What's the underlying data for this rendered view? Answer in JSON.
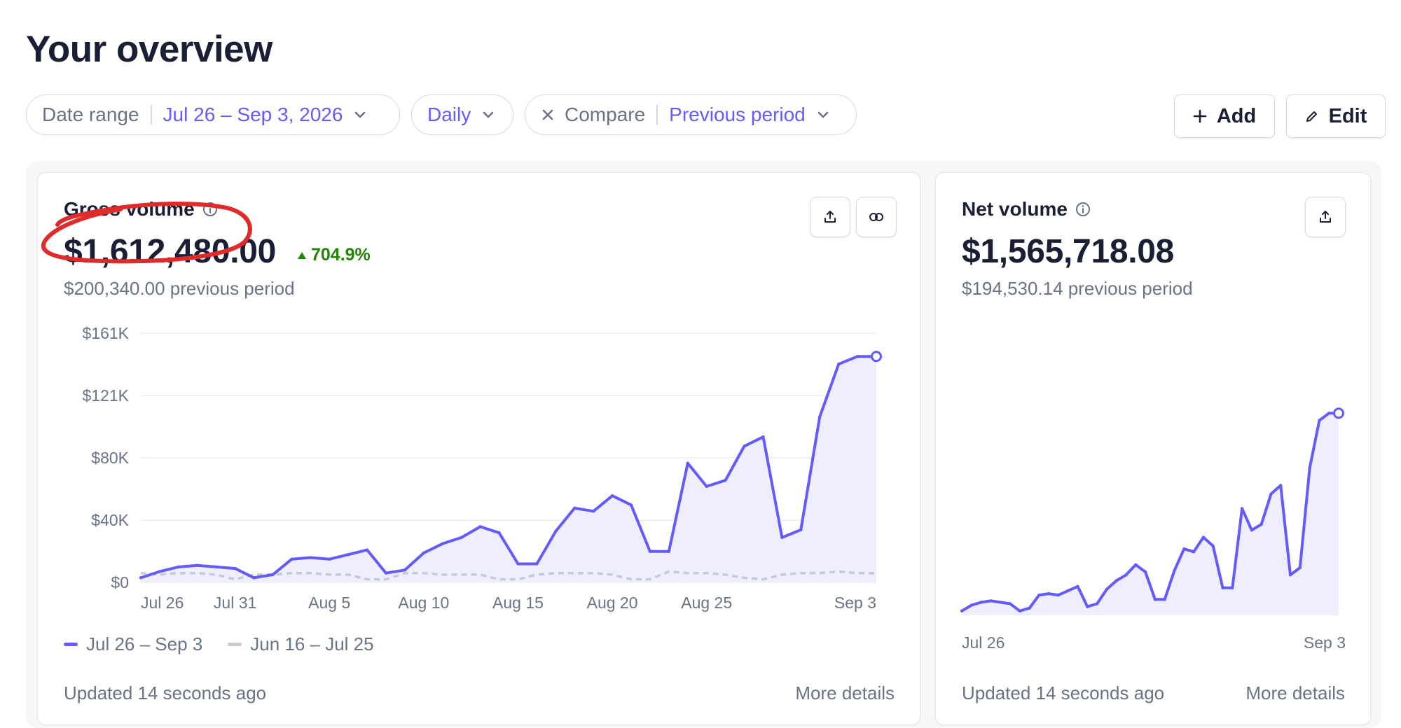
{
  "page": {
    "title": "Your overview"
  },
  "filters": {
    "date_range": {
      "label": "Date range",
      "value": "Jul 26 – Sep 3, 2026"
    },
    "interval": {
      "value": "Daily"
    },
    "compare": {
      "label": "Compare",
      "value": "Previous period"
    }
  },
  "actions": {
    "add_label": "Add",
    "edit_label": "Edit"
  },
  "colors": {
    "accent": "#635bff",
    "positive": "#228403",
    "muted": "#697386",
    "annotation": "#e02b2b",
    "previous_series": "#c6cad3"
  },
  "icons": [
    "chevron-down-icon",
    "close-icon",
    "plus-icon",
    "pencil-icon",
    "info-icon",
    "export-icon",
    "link-icon",
    "arrow-up-icon"
  ],
  "gross": {
    "title": "Gross volume",
    "value": "$1,612,480.00",
    "delta": "704.9%",
    "previous": "$200,340.00 previous period",
    "updated": "Updated 14 seconds ago",
    "more": "More details",
    "legend_current": "Jul 26 – Sep 3",
    "legend_previous": "Jun 16 – Jul 25"
  },
  "net": {
    "title": "Net volume",
    "value": "$1,565,718.08",
    "previous": "$194,530.14 previous period",
    "updated": "Updated 14 seconds ago",
    "more": "More details",
    "x_start": "Jul 26",
    "x_end": "Sep 3"
  },
  "chart_data": [
    {
      "type": "area",
      "title": "Gross volume",
      "y_ticks": [
        "$0",
        "$40K",
        "$80K",
        "$121K",
        "$161K"
      ],
      "ylim": [
        0,
        161
      ],
      "x_ticks": [
        {
          "label": "Jul 26",
          "index": 1
        },
        {
          "label": "Jul 31",
          "index": 6
        },
        {
          "label": "Aug 5",
          "index": 11
        },
        {
          "label": "Aug 10",
          "index": 16
        },
        {
          "label": "Aug 15",
          "index": 21
        },
        {
          "label": "Aug 20",
          "index": 26
        },
        {
          "label": "Aug 25",
          "index": 31
        },
        {
          "label": "Sep 3",
          "index": 40
        }
      ],
      "grid": true,
      "series": [
        {
          "name": "Jul 26 – Sep 3",
          "values": [
            3,
            7,
            10,
            11,
            10,
            9,
            3,
            5,
            15,
            16,
            15,
            18,
            21,
            6,
            8,
            19,
            25,
            29,
            36,
            32,
            12,
            12,
            33,
            48,
            46,
            56,
            50,
            20,
            20,
            77,
            62,
            66,
            88,
            94,
            29,
            34,
            107,
            141,
            146,
            146
          ],
          "color": "#635bff"
        },
        {
          "name": "Jun 16 – Jul 25",
          "values": [
            6,
            5,
            6,
            6,
            5,
            2,
            5,
            5,
            6,
            6,
            5,
            5,
            2,
            2,
            6,
            6,
            5,
            5,
            5,
            2,
            2,
            5,
            6,
            6,
            6,
            5,
            2,
            2,
            7,
            6,
            6,
            5,
            3,
            2,
            5,
            6,
            6,
            7,
            6,
            6
          ],
          "color": "#c6cad3"
        }
      ]
    },
    {
      "type": "area",
      "title": "Net volume",
      "x_ticks": [
        "Jul 26",
        "Sep 3"
      ],
      "ylim": [
        0,
        161
      ],
      "grid": false,
      "series": [
        {
          "name": "Jul 26 – Sep 3",
          "values": [
            3,
            7,
            9,
            10,
            9,
            8,
            3,
            5,
            14,
            15,
            14,
            17,
            20,
            6,
            8,
            18,
            24,
            28,
            35,
            30,
            11,
            11,
            31,
            46,
            44,
            54,
            48,
            19,
            19,
            74,
            59,
            63,
            84,
            90,
            28,
            33,
            102,
            135,
            140,
            140
          ],
          "color": "#635bff"
        }
      ]
    }
  ]
}
